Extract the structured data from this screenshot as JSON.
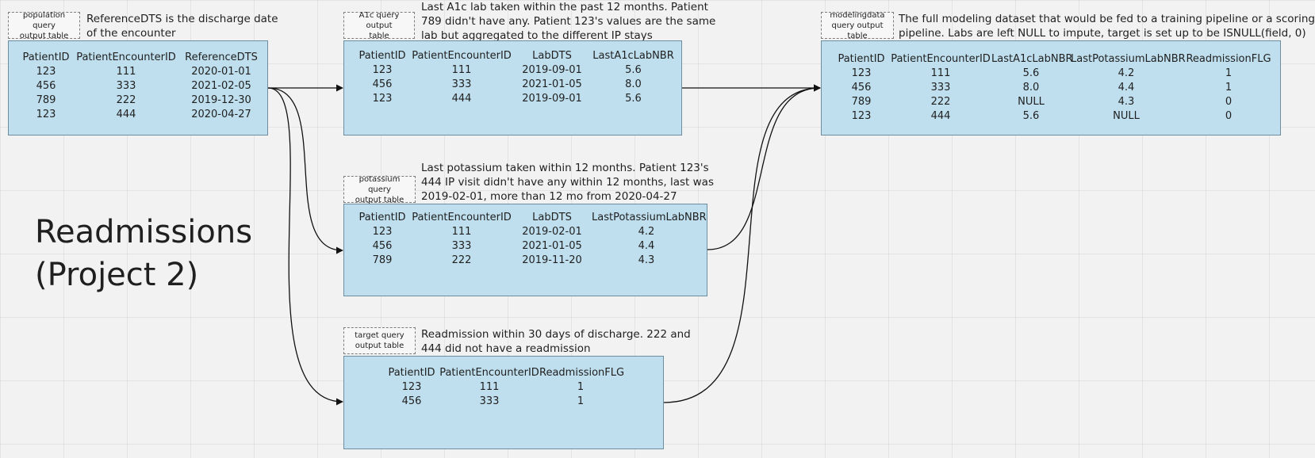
{
  "title": {
    "line1": "Readmissions",
    "line2": "(Project 2)"
  },
  "population": {
    "label_line1": "population query",
    "label_line2": "output table",
    "note_line1": "ReferenceDTS is the discharge date",
    "note_line2": "of the encounter",
    "columns": [
      "PatientID",
      "PatientEncounterID",
      "ReferenceDTS"
    ],
    "rows": [
      [
        "123",
        "111",
        "2020-01-01"
      ],
      [
        "456",
        "333",
        "2021-02-05"
      ],
      [
        "789",
        "222",
        "2019-12-30"
      ],
      [
        "123",
        "444",
        "2020-04-27"
      ]
    ]
  },
  "a1c": {
    "label_line1": "A1c query output",
    "label_line2": "table",
    "note_line1": "Last A1c lab taken within the past 12 months. Patient",
    "note_line2": "789 didn't have any. Patient 123's values are the same",
    "note_line3": "lab but aggregated to the different IP stays",
    "columns": [
      "PatientID",
      "PatientEncounterID",
      "LabDTS",
      "LastA1cLabNBR"
    ],
    "rows": [
      [
        "123",
        "111",
        "2019-09-01",
        "5.6"
      ],
      [
        "456",
        "333",
        "2021-01-05",
        "8.0"
      ],
      [
        "",
        "",
        "",
        ""
      ],
      [
        "123",
        "444",
        "2019-09-01",
        "5.6"
      ]
    ]
  },
  "potassium": {
    "label_line1": "potassium query",
    "label_line2": "output table",
    "note_line1": "Last potassium taken within 12 months. Patient 123's",
    "note_line2": "444 IP visit didn't have any within 12 months, last was",
    "note_line3": "2019-02-01, more than 12 mo from 2020-04-27",
    "columns": [
      "PatientID",
      "PatientEncounterID",
      "LabDTS",
      "LastPotassiumLabNBR"
    ],
    "rows": [
      [
        "123",
        "111",
        "2019-02-01",
        "4.2"
      ],
      [
        "456",
        "333",
        "2021-01-05",
        "4.4"
      ],
      [
        "789",
        "222",
        "2019-11-20",
        "4.3"
      ]
    ]
  },
  "target": {
    "label_line1": "target query",
    "label_line2": "output table",
    "note_line1": "Readmission within 30 days of discharge. 222 and",
    "note_line2": "444 did not have a readmission",
    "columns": [
      "PatientID",
      "PatientEncounterID",
      "ReadmissionFLG"
    ],
    "rows": [
      [
        "123",
        "111",
        "1"
      ],
      [
        "456",
        "333",
        "1"
      ]
    ]
  },
  "modeling": {
    "label_line1": "modelingdata",
    "label_line2": "query output table",
    "note_line1": "The full modeling dataset that would be fed to a training pipeline or a scoring",
    "note_line2": "pipeline. Labs are left NULL to impute, target is set up to be ISNULL(field, 0)",
    "columns": [
      "PatientID",
      "PatientEncounterID",
      "LastA1cLabNBR",
      "LastPotassiumLabNBR",
      "ReadmissionFLG"
    ],
    "rows": [
      [
        "123",
        "111",
        "5.6",
        "4.2",
        "1"
      ],
      [
        "456",
        "333",
        "8.0",
        "4.4",
        "1"
      ],
      [
        "789",
        "222",
        "NULL",
        "4.3",
        "0"
      ],
      [
        "123",
        "444",
        "5.6",
        "NULL",
        "0"
      ]
    ]
  }
}
